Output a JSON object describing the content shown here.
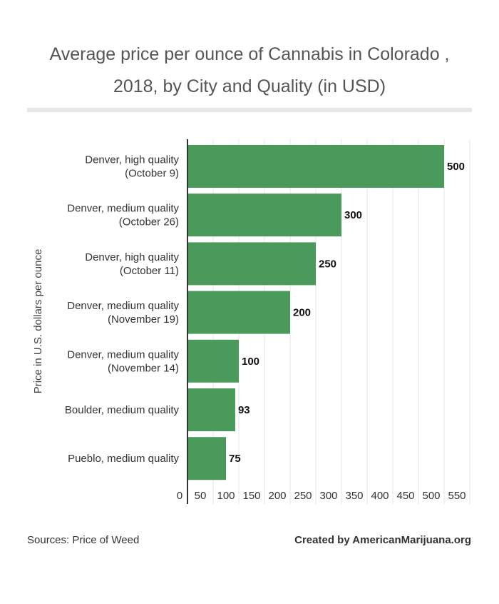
{
  "chart_data": {
    "type": "bar",
    "orientation": "horizontal",
    "title": [
      "Average price per ounce of Cannabis in Colorado ,",
      "2018, by City and Quality (in USD)"
    ],
    "ylabel": "Price in U.S. dollars per ounce",
    "xlabel": "",
    "categories": [
      [
        "Denver, high quality",
        "(October 9)"
      ],
      [
        "Denver, medium quality",
        "(October 26)"
      ],
      [
        "Denver, high quality",
        "(October 11)"
      ],
      [
        "Denver, medium quality",
        "(November 19)"
      ],
      [
        "Denver, medium quality",
        "(November 14)"
      ],
      [
        "Boulder, medium quality"
      ],
      [
        "Pueblo, medium quality"
      ]
    ],
    "values": [
      500,
      300,
      250,
      200,
      100,
      93,
      75
    ],
    "xlim": [
      0,
      550
    ],
    "xticks": [
      0,
      50,
      100,
      150,
      200,
      250,
      300,
      350,
      400,
      450,
      500,
      550
    ],
    "grid": true,
    "bar_color": "#4a9a5c"
  },
  "footer": {
    "source": "Sources: Price of Weed",
    "credit": "Created by AmericanMarijuana.org"
  }
}
